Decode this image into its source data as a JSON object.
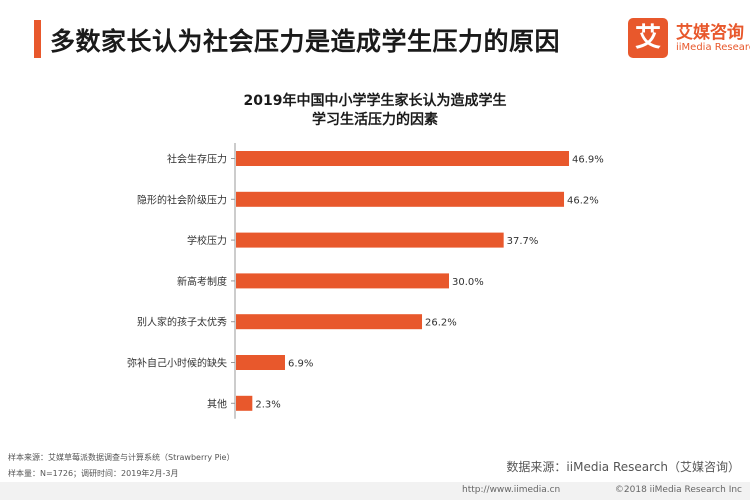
{
  "header": {
    "title": "多数家长认为社会压力是造成学生压力的原因",
    "brand_mark": "艾",
    "brand_cn": "艾媒咨询",
    "brand_en": "iiMedia Research"
  },
  "chart_data": {
    "type": "bar",
    "orientation": "horizontal",
    "title_lines": [
      "2019年中国中小学学生家长认为造成学生",
      "学习生活压力的因素"
    ],
    "categories": [
      "社会生存压力",
      "隐形的社会阶级压力",
      "学校压力",
      "新高考制度",
      "别人家的孩子太优秀",
      "弥补自己小时候的缺失",
      "其他"
    ],
    "values": [
      46.9,
      46.2,
      37.7,
      30.0,
      26.2,
      6.9,
      2.3
    ],
    "value_labels": [
      "46.9%",
      "46.2%",
      "37.7%",
      "30.0%",
      "26.2%",
      "6.9%",
      "2.3%"
    ],
    "unit": "%",
    "xlim": [
      0,
      50
    ],
    "bar_color": "#e8582c",
    "grid": false,
    "xlabel": "",
    "ylabel": ""
  },
  "footer": {
    "sample_source": "样本来源：艾媒草莓派数据调查与计算系统（Strawberry Pie）",
    "sample_size": "样本量：N=1726；调研时间：2019年2月-3月",
    "data_source": "数据来源：iiMedia Research（艾媒咨询）",
    "url": "http://www.iimedia.cn",
    "copyright": "©2018 iiMedia Research Inc"
  },
  "colors": {
    "accent": "#e8582c"
  }
}
